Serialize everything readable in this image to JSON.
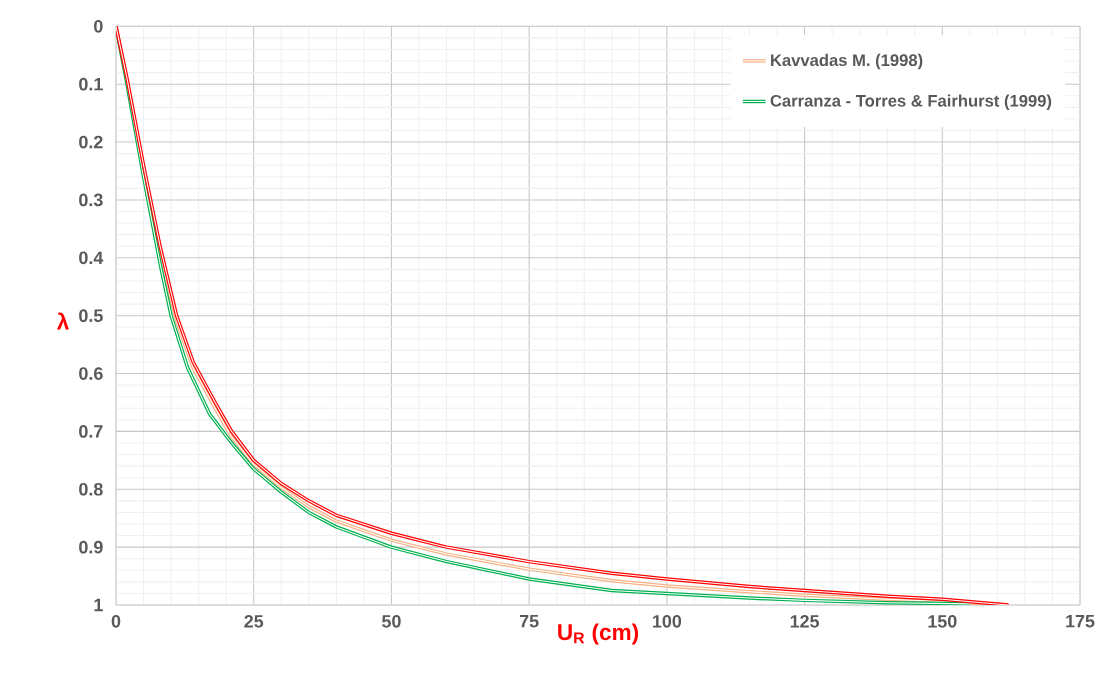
{
  "chart_data": {
    "type": "line",
    "xlabel": "U$_{R}$ (cm)",
    "ylabel": "λ",
    "xlim": [
      0,
      175
    ],
    "xticks": [
      0,
      25,
      50,
      75,
      100,
      125,
      150,
      175
    ],
    "ylim": [
      1,
      0
    ],
    "yticks": [
      0,
      0.1,
      0.2,
      0.3,
      0.4,
      0.5,
      0.6,
      0.7,
      0.8,
      0.9,
      1
    ],
    "grid": true,
    "legend": "top right",
    "marker": "none",
    "line_style": "solid",
    "series": [
      {
        "name": "Kavvadas M. (1998)",
        "color": "#f4b183",
        "x": [
          0,
          2,
          5,
          8,
          11,
          14,
          18,
          21,
          25,
          30,
          35,
          40,
          50,
          60,
          75,
          90,
          100,
          115,
          125,
          140,
          150,
          162
        ],
        "values": [
          0,
          0.095,
          0.25,
          0.395,
          0.51,
          0.59,
          0.66,
          0.71,
          0.757,
          0.797,
          0.83,
          0.855,
          0.888,
          0.912,
          0.938,
          0.958,
          0.967,
          0.977,
          0.983,
          0.99,
          0.994,
          1.0
        ]
      },
      {
        "name": "Carranza - Torres & Fairhurst (1999)",
        "color": "#00b050",
        "x": [
          0,
          2,
          5,
          8,
          10,
          13,
          17,
          21,
          25,
          30,
          35,
          40,
          50,
          60,
          75,
          90,
          100,
          115,
          125,
          140,
          155
        ],
        "values": [
          0,
          0.1,
          0.26,
          0.41,
          0.5,
          0.59,
          0.67,
          0.72,
          0.765,
          0.805,
          0.84,
          0.865,
          0.9,
          0.925,
          0.955,
          0.975,
          0.98,
          0.988,
          0.992,
          0.996,
          0.998
        ]
      },
      {
        "color": "#ff0000",
        "x": [
          0,
          2,
          5,
          8,
          11,
          14,
          18,
          21,
          25,
          30,
          35,
          40,
          50,
          60,
          75,
          90,
          100,
          115,
          125,
          140,
          150,
          162
        ],
        "values": [
          0,
          0.09,
          0.24,
          0.38,
          0.5,
          0.58,
          0.65,
          0.7,
          0.75,
          0.79,
          0.82,
          0.845,
          0.876,
          0.9,
          0.925,
          0.945,
          0.955,
          0.968,
          0.975,
          0.985,
          0.99,
          1.0
        ]
      }
    ]
  }
}
